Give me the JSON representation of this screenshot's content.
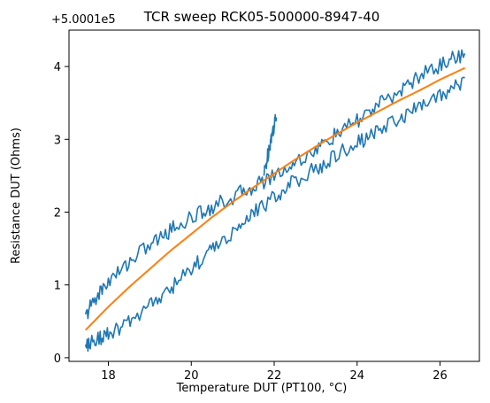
{
  "chart_data": {
    "type": "line",
    "title": "TCR sweep RCK05-500000-8947-40",
    "xlabel": "Temperature DUT (PT100, °C)",
    "ylabel": "Resistance DUT (Ohms)",
    "y_offset_label": "+5.0001e5",
    "xlim": [
      17.05,
      26.95
    ],
    "ylim": [
      -0.05,
      4.5
    ],
    "x_ticks": [
      18,
      20,
      22,
      24,
      26
    ],
    "y_ticks": [
      0,
      1,
      2,
      3,
      4
    ],
    "grid": false,
    "colors": {
      "measured": "#1f77b4",
      "fit": "#ff7f0e"
    },
    "series": [
      {
        "role": "measured-upper-branch",
        "x": [
          17.45,
          17.6,
          17.8,
          18.0,
          18.3,
          18.6,
          19.0,
          19.3,
          19.6,
          20.0,
          20.3,
          20.6,
          21.0,
          21.3,
          21.6,
          21.9,
          22.3,
          22.6,
          23.0,
          23.3,
          23.6,
          24.0,
          24.3,
          24.6,
          25.0,
          25.3,
          25.6,
          26.0,
          26.3,
          26.6
        ],
        "y": [
          0.55,
          0.75,
          0.9,
          1.05,
          1.2,
          1.38,
          1.55,
          1.67,
          1.8,
          1.92,
          2.02,
          2.1,
          2.2,
          2.3,
          2.38,
          2.48,
          2.6,
          2.72,
          2.85,
          2.98,
          3.1,
          3.25,
          3.38,
          3.5,
          3.65,
          3.78,
          3.9,
          4.02,
          4.12,
          4.18
        ]
      },
      {
        "role": "measured-lower-branch",
        "x": [
          26.6,
          26.3,
          26.0,
          25.6,
          25.3,
          25.0,
          24.6,
          24.3,
          24.0,
          23.6,
          23.3,
          23.0,
          22.6,
          22.3,
          22.0,
          21.6,
          21.3,
          21.0,
          20.6,
          20.3,
          20.0,
          19.6,
          19.3,
          19.0,
          18.6,
          18.3,
          18.0,
          17.8,
          17.6,
          17.45
        ],
        "y": [
          3.8,
          3.7,
          3.6,
          3.5,
          3.38,
          3.28,
          3.15,
          3.05,
          2.95,
          2.82,
          2.7,
          2.6,
          2.45,
          2.35,
          2.2,
          2.05,
          1.9,
          1.72,
          1.55,
          1.38,
          1.2,
          1.0,
          0.85,
          0.7,
          0.55,
          0.42,
          0.32,
          0.28,
          0.22,
          0.18
        ]
      },
      {
        "role": "measured-spike",
        "x": [
          21.75,
          21.82,
          21.88,
          21.94,
          22.0,
          22.05
        ],
        "y": [
          2.5,
          2.7,
          2.9,
          3.05,
          3.2,
          3.3
        ]
      },
      {
        "role": "fit",
        "x": [
          17.45,
          18.0,
          18.5,
          19.0,
          19.5,
          20.0,
          20.5,
          21.0,
          21.5,
          22.0,
          22.5,
          23.0,
          23.5,
          24.0,
          24.5,
          25.0,
          25.5,
          26.0,
          26.6
        ],
        "y": [
          0.38,
          0.7,
          0.97,
          1.22,
          1.47,
          1.7,
          1.93,
          2.14,
          2.34,
          2.53,
          2.72,
          2.9,
          3.07,
          3.23,
          3.38,
          3.53,
          3.67,
          3.82,
          3.98
        ]
      }
    ]
  }
}
